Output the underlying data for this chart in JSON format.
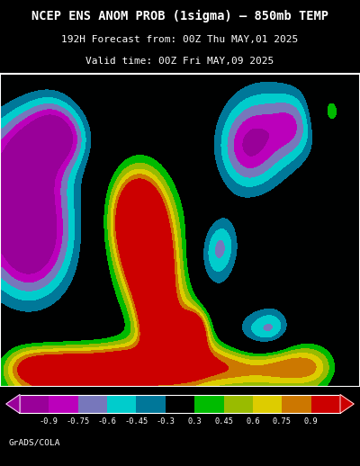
{
  "title_line1": "NCEP ENS ANOM PROB (1sigma) – 850mb TEMP",
  "title_line2": "192H Forecast from: 00Z Thu MAY,01 2025",
  "title_line3": "Valid time: 00Z Fri MAY,09 2025",
  "background_color": "#000000",
  "title_color": "#ffffff",
  "border_color": "#ffffff",
  "colorbar_label_color": "#ffffff",
  "footer_text": "GrADS/COLA",
  "footer_color": "#ffffff",
  "levels": [
    -1.0,
    -0.9,
    -0.75,
    -0.6,
    -0.45,
    -0.3,
    0.3,
    0.45,
    0.6,
    0.75,
    0.9,
    1.0
  ],
  "cmap_colors": [
    "#990099",
    "#bb00bb",
    "#7777bb",
    "#00cccc",
    "#007799",
    "#000000",
    "#00bb00",
    "#99bb00",
    "#ddcc00",
    "#cc7700",
    "#cc0000"
  ],
  "cbar_colors": [
    "#990099",
    "#bb00bb",
    "#7777bb",
    "#00cccc",
    "#007799",
    "#000000",
    "#00bb00",
    "#99bb00",
    "#ddcc00",
    "#cc7700",
    "#cc0000"
  ],
  "cbar_tick_labels": [
    "-0.9",
    "-0.75",
    "-0.6",
    "-0.45",
    "-0.3",
    "0.3",
    "0.45",
    "0.6",
    "0.75",
    "0.9"
  ],
  "fig_width": 4.0,
  "fig_height": 5.18,
  "dpi": 100,
  "map_extent": [
    -180,
    -10,
    5,
    85
  ],
  "grid_lon_step": 20,
  "grid_lat_step": 15
}
